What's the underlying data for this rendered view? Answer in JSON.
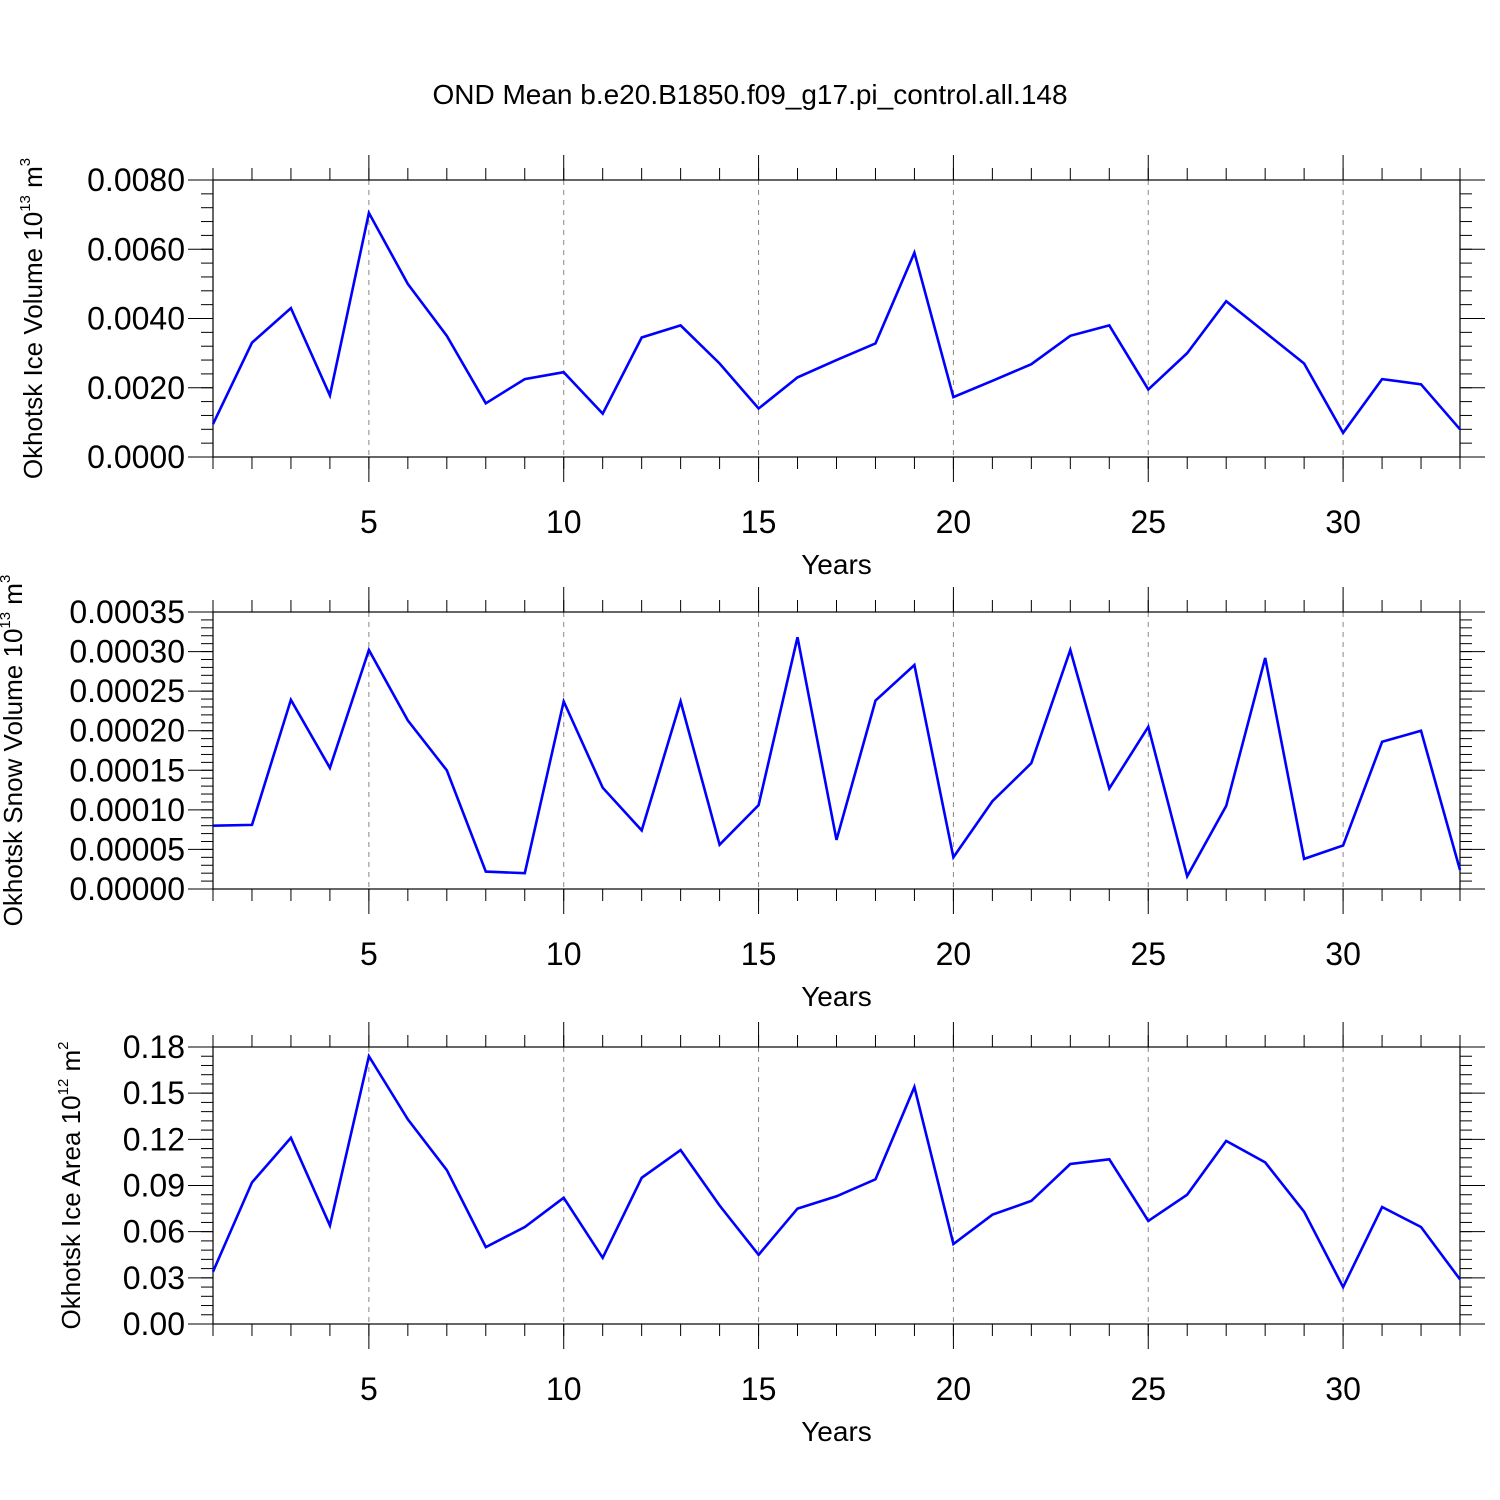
{
  "title": "OND Mean b.e20.B1850.f09_g17.pi_control.all.148",
  "line_color": "#0000ff",
  "chart_data": [
    {
      "type": "line",
      "xlabel": "Years",
      "ylabel": {
        "main": "Okhotsk Ice Volume 10",
        "exp": "13",
        "unit": " m",
        "unit_exp": "3"
      },
      "xlim": [
        1,
        33
      ],
      "ylim": [
        0,
        0.008
      ],
      "x_ticks": [
        5,
        10,
        15,
        20,
        25,
        30
      ],
      "x_tick_labels": [
        "5",
        "10",
        "15",
        "20",
        "25",
        "30"
      ],
      "y_ticks": [
        0,
        0.002,
        0.004,
        0.006,
        0.008
      ],
      "y_tick_labels": [
        "0.0000",
        "0.0020",
        "0.0040",
        "0.0060",
        "0.0080"
      ],
      "x": [
        1,
        2,
        3,
        4,
        5,
        6,
        7,
        8,
        9,
        10,
        11,
        12,
        13,
        14,
        15,
        16,
        17,
        18,
        19,
        20,
        21,
        22,
        23,
        24,
        25,
        26,
        27,
        28,
        29,
        30,
        31,
        32,
        33
      ],
      "values": [
        0.00095,
        0.0033,
        0.0043,
        0.00178,
        0.00705,
        0.005,
        0.0035,
        0.00155,
        0.00225,
        0.00245,
        0.00125,
        0.00345,
        0.0038,
        0.0027,
        0.0014,
        0.0023,
        0.0028,
        0.00328,
        0.0059,
        0.00173,
        0.0022,
        0.00268,
        0.0035,
        0.0038,
        0.00195,
        0.003,
        0.0045,
        0.0036,
        0.0027,
        0.0007,
        0.00225,
        0.0021,
        0.0008
      ]
    },
    {
      "type": "line",
      "xlabel": "Years",
      "ylabel": {
        "main": "Okhotsk Snow Volume 10",
        "exp": "13",
        "unit": " m",
        "unit_exp": "3"
      },
      "xlim": [
        1,
        33
      ],
      "ylim": [
        0,
        0.00035
      ],
      "x_ticks": [
        5,
        10,
        15,
        20,
        25,
        30
      ],
      "x_tick_labels": [
        "5",
        "10",
        "15",
        "20",
        "25",
        "30"
      ],
      "y_ticks": [
        0,
        5e-05,
        0.0001,
        0.00015,
        0.0002,
        0.00025,
        0.0003,
        0.00035
      ],
      "y_tick_labels": [
        "0.00000",
        "0.00005",
        "0.00010",
        "0.00015",
        "0.00020",
        "0.00025",
        "0.00030",
        "0.00035"
      ],
      "x": [
        1,
        2,
        3,
        4,
        5,
        6,
        7,
        8,
        9,
        10,
        11,
        12,
        13,
        14,
        15,
        16,
        17,
        18,
        19,
        20,
        21,
        22,
        23,
        24,
        25,
        26,
        27,
        28,
        29,
        30,
        31,
        32,
        33
      ],
      "values": [
        8e-05,
        8.1e-05,
        0.000239,
        0.000153,
        0.000302,
        0.000213,
        0.00015,
        2.2e-05,
        2e-05,
        0.000237,
        0.000128,
        7.4e-05,
        0.000237,
        5.6e-05,
        0.000106,
        0.000318,
        6.2e-05,
        0.000238,
        0.000283,
        4e-05,
        0.000111,
        0.000159,
        0.000302,
        0.000127,
        0.000205,
        1.6e-05,
        0.000105,
        0.000292,
        3.8e-05,
        5.5e-05,
        0.000186,
        0.0002,
        2.4e-05
      ]
    },
    {
      "type": "line",
      "xlabel": "Years",
      "ylabel": {
        "main": "Okhotsk Ice Area 10",
        "exp": "12",
        "unit": " m",
        "unit_exp": "2"
      },
      "xlim": [
        1,
        33
      ],
      "ylim": [
        0,
        0.18
      ],
      "x_ticks": [
        5,
        10,
        15,
        20,
        25,
        30
      ],
      "x_tick_labels": [
        "5",
        "10",
        "15",
        "20",
        "25",
        "30"
      ],
      "y_ticks": [
        0,
        0.03,
        0.06,
        0.09,
        0.12,
        0.15,
        0.18
      ],
      "y_tick_labels": [
        "0.00",
        "0.03",
        "0.06",
        "0.09",
        "0.12",
        "0.15",
        "0.18"
      ],
      "x": [
        1,
        2,
        3,
        4,
        5,
        6,
        7,
        8,
        9,
        10,
        11,
        12,
        13,
        14,
        15,
        16,
        17,
        18,
        19,
        20,
        21,
        22,
        23,
        24,
        25,
        26,
        27,
        28,
        29,
        30,
        31,
        32,
        33
      ],
      "values": [
        0.034,
        0.092,
        0.121,
        0.064,
        0.174,
        0.133,
        0.1,
        0.05,
        0.063,
        0.082,
        0.043,
        0.095,
        0.113,
        0.077,
        0.045,
        0.075,
        0.083,
        0.094,
        0.154,
        0.052,
        0.071,
        0.08,
        0.104,
        0.107,
        0.067,
        0.084,
        0.119,
        0.105,
        0.073,
        0.024,
        0.076,
        0.063,
        0.029
      ]
    }
  ]
}
